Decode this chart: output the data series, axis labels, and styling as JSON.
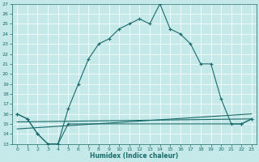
{
  "xlabel": "Humidex (Indice chaleur)",
  "bg_color": "#c5e8e8",
  "line_color": "#1a6b6b",
  "grid_color": "#ffffff",
  "xlim": [
    -0.5,
    23.5
  ],
  "ylim": [
    13,
    27
  ],
  "xticks": [
    0,
    1,
    2,
    3,
    4,
    5,
    6,
    7,
    8,
    9,
    10,
    11,
    12,
    13,
    14,
    15,
    16,
    17,
    18,
    19,
    20,
    21,
    22,
    23
  ],
  "yticks": [
    13,
    14,
    15,
    16,
    17,
    18,
    19,
    20,
    21,
    22,
    23,
    24,
    25,
    26,
    27
  ],
  "line1_x": [
    0,
    1,
    2,
    3,
    4,
    5,
    6,
    7,
    8,
    9,
    10,
    11,
    12,
    13,
    14,
    15,
    16,
    17,
    18,
    19,
    20,
    21,
    22,
    23
  ],
  "line1_y": [
    16.0,
    15.5,
    14.0,
    13.0,
    13.0,
    16.5,
    19.0,
    21.5,
    23.0,
    23.5,
    24.5,
    25.0,
    25.5,
    25.0,
    27.0,
    24.5,
    24.0,
    23.0,
    21.0,
    21.0,
    17.5,
    15.0,
    15.0,
    15.5
  ],
  "line2_x": [
    0,
    1,
    2,
    3,
    4,
    5,
    22,
    23
  ],
  "line2_y": [
    16.0,
    15.5,
    14.0,
    13.0,
    13.0,
    15.0,
    15.0,
    15.5
  ],
  "line3_x": [
    0,
    23
  ],
  "line3_y": [
    15.2,
    15.5
  ],
  "line4_x": [
    0,
    23
  ],
  "line4_y": [
    14.5,
    16.0
  ]
}
